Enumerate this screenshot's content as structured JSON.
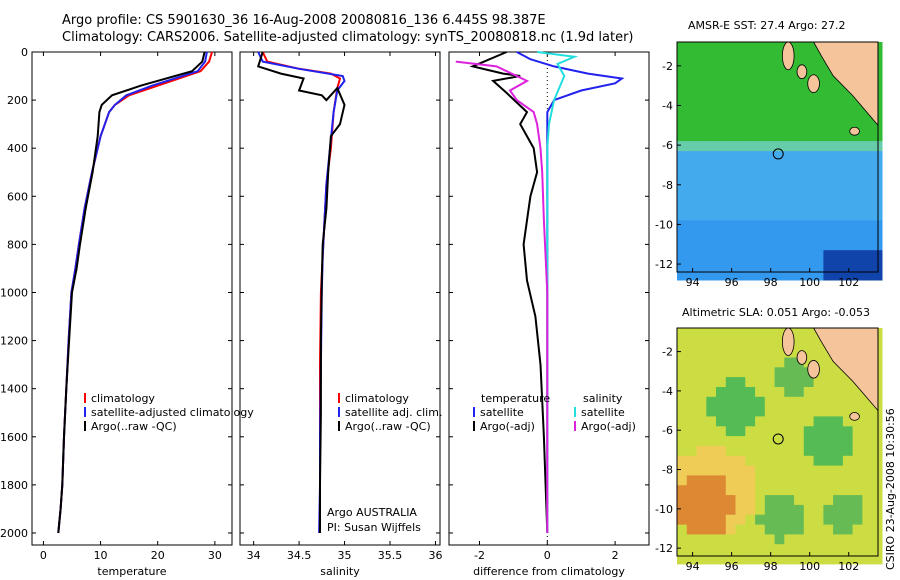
{
  "header": {
    "line1": "Argo profile: CS 5901630_36 16-Aug-2008 20080816_136 6.445S 98.387E",
    "line2": "Climatology: CARS2006. Satellite-adjusted climatology: synTS_20080818.nc (1.9d later)"
  },
  "footer_vertical": "CSIRO 23-Aug-2008 10:30:56",
  "colors": {
    "red": "#ff0000",
    "blue": "#2222ee",
    "black": "#000000",
    "cyan": "#22dddd",
    "magenta": "#dd22dd",
    "land": "#f5c49a"
  },
  "chart_data": [
    {
      "type": "line",
      "name": "temperature panel",
      "xlabel": "temperature",
      "ylabel": "",
      "xlim": [
        -2,
        33
      ],
      "ylim": [
        2050,
        0
      ],
      "xticks": [
        0,
        10,
        20,
        30
      ],
      "yticks": [
        0,
        200,
        400,
        600,
        800,
        1000,
        1200,
        1400,
        1600,
        1800,
        2000
      ],
      "legend": [
        "climatology",
        "satellite-adjusted climatology",
        "Argo(..raw -QC)"
      ],
      "series": [
        {
          "name": "climatology",
          "color": "red",
          "x": [
            29.5,
            29.0,
            27.5,
            20.0,
            15.0,
            12.5,
            11.5,
            10.0,
            8.5,
            7.2,
            6.2,
            5.6,
            4.9,
            4.4,
            4.0,
            3.6,
            3.3,
            3.0,
            2.6
          ],
          "y": [
            0,
            40,
            80,
            140,
            180,
            220,
            250,
            350,
            500,
            650,
            800,
            900,
            1000,
            1200,
            1400,
            1600,
            1800,
            1900,
            2000
          ]
        },
        {
          "name": "satellite-adjusted climatology",
          "color": "blue",
          "x": [
            28.6,
            28.3,
            27.0,
            19.0,
            14.5,
            12.5,
            11.5,
            10.0,
            8.5,
            7.2,
            6.2,
            5.6,
            4.9,
            4.4,
            4.0,
            3.6,
            3.3,
            3.0,
            2.6
          ],
          "y": [
            0,
            40,
            80,
            140,
            180,
            220,
            250,
            350,
            500,
            650,
            800,
            900,
            1000,
            1200,
            1400,
            1600,
            1800,
            1900,
            2000
          ]
        },
        {
          "name": "Argo(..raw -QC)",
          "color": "black",
          "x": [
            28.2,
            27.8,
            26.0,
            17.0,
            12.0,
            10.2,
            9.8,
            9.5,
            8.6,
            7.4,
            6.4,
            5.8,
            5.0,
            4.5,
            4.0,
            3.6,
            3.3,
            3.0,
            2.6
          ],
          "y": [
            0,
            40,
            80,
            140,
            180,
            220,
            250,
            350,
            500,
            650,
            800,
            900,
            1000,
            1200,
            1400,
            1600,
            1800,
            1900,
            2000
          ]
        }
      ]
    },
    {
      "type": "line",
      "name": "salinity panel",
      "xlabel": "salinity",
      "xlim": [
        33.85,
        36.05
      ],
      "ylim": [
        2050,
        0
      ],
      "xticks": [
        34,
        34.5,
        35,
        35.5,
        36
      ],
      "legend": [
        "climatology",
        "satellite adj. clim.",
        "Argo(..raw -QC)"
      ],
      "annotation": [
        "Argo AUSTRALIA",
        "PI: Susan Wijffels"
      ],
      "series": [
        {
          "name": "climatology",
          "color": "red",
          "x": [
            34.1,
            34.15,
            34.5,
            34.85,
            34.95,
            34.92,
            34.88,
            34.85,
            34.8,
            34.78,
            34.76,
            34.74,
            34.73,
            34.73,
            34.73,
            34.73
          ],
          "y": [
            0,
            40,
            70,
            90,
            110,
            150,
            250,
            400,
            550,
            700,
            850,
            1000,
            1300,
            1600,
            1800,
            2000
          ]
        },
        {
          "name": "satellite adj. clim.",
          "color": "blue",
          "x": [
            34.05,
            34.1,
            34.5,
            34.98,
            35.0,
            34.92,
            34.88,
            34.84,
            34.8,
            34.78,
            34.76,
            34.75,
            34.74,
            34.73,
            34.73,
            34.72
          ],
          "y": [
            0,
            40,
            70,
            100,
            120,
            160,
            250,
            400,
            550,
            700,
            850,
            1000,
            1300,
            1600,
            1800,
            2000
          ]
        },
        {
          "name": "Argo(..raw -QC)",
          "color": "black",
          "x": [
            34.1,
            34.05,
            34.3,
            34.55,
            34.5,
            34.75,
            34.8,
            34.92,
            35.0,
            34.95,
            34.85,
            34.82,
            34.8,
            34.76,
            34.75,
            34.74,
            34.74,
            34.73,
            34.73
          ],
          "y": [
            0,
            60,
            90,
            110,
            160,
            180,
            200,
            150,
            220,
            300,
            350,
            500,
            650,
            800,
            950,
            1200,
            1500,
            1800,
            2000
          ]
        }
      ]
    },
    {
      "type": "line",
      "name": "difference panel",
      "xlabel": "difference from climatology",
      "xlim": [
        -2.9,
        3.0
      ],
      "ylim": [
        2050,
        0
      ],
      "xticks": [
        -2,
        0,
        2
      ],
      "legend_left": {
        "title": "temperature",
        "items": [
          "satellite",
          "Argo(-adj)"
        ]
      },
      "legend_right": {
        "title": "salinity",
        "items": [
          "satellite",
          "Argo(-adj)"
        ]
      },
      "series": [
        {
          "name": "temperature satellite",
          "color": "blue",
          "x": [
            -0.9,
            -0.5,
            0.2,
            1.2,
            2.2,
            2.0,
            1.0,
            0.2,
            0.0,
            0.0,
            0.0,
            0.0,
            0.0
          ],
          "y": [
            0,
            30,
            60,
            90,
            110,
            130,
            160,
            200,
            250,
            400,
            800,
            1400,
            2000
          ]
        },
        {
          "name": "temperature Argo(-adj)",
          "color": "black",
          "x": [
            -1.2,
            -2.2,
            -1.3,
            -0.8,
            -1.6,
            -1.2,
            -0.6,
            -0.8,
            -0.4,
            -0.3,
            -0.5,
            -0.6,
            -0.7,
            -0.6,
            -0.35,
            -0.2,
            -0.1,
            0.0
          ],
          "y": [
            0,
            60,
            90,
            100,
            120,
            170,
            250,
            300,
            400,
            500,
            600,
            700,
            800,
            950,
            1100,
            1300,
            1600,
            2000
          ]
        },
        {
          "name": "salinity satellite",
          "color": "cyan",
          "x": [
            -0.3,
            0.8,
            0.3,
            0.5,
            0.2,
            0.05,
            0.0,
            0.0,
            0.0,
            0.0
          ],
          "y": [
            0,
            20,
            50,
            100,
            200,
            300,
            400,
            800,
            1400,
            2000
          ]
        },
        {
          "name": "salinity Argo(-adj)",
          "color": "magenta",
          "x": [
            -2.7,
            -1.5,
            -1.2,
            -0.6,
            -1.1,
            -0.9,
            -0.4,
            -0.3,
            -0.2,
            -0.15,
            -0.1,
            0.0,
            0.0
          ],
          "y": [
            40,
            60,
            80,
            120,
            160,
            200,
            250,
            300,
            400,
            500,
            700,
            1000,
            2000
          ]
        }
      ]
    },
    {
      "type": "heatmap",
      "name": "sst map",
      "title": "AMSR-E SST: 27.4  Argo: 27.2",
      "xlim": [
        93.2,
        103.5
      ],
      "ylim": [
        -12.4,
        -0.8
      ],
      "xticks": [
        94,
        96,
        98,
        100,
        102
      ],
      "yticks": [
        -2,
        -4,
        -6,
        -8,
        -10,
        -12
      ],
      "marker": {
        "lon": 98.387,
        "lat": -6.445
      }
    },
    {
      "type": "heatmap",
      "name": "sla map",
      "title": "Altimetric SLA: 0.051  Argo: -0.053",
      "xlim": [
        93.2,
        103.5
      ],
      "ylim": [
        -12.4,
        -0.8
      ],
      "xticks": [
        94,
        96,
        98,
        100,
        102
      ],
      "yticks": [
        -2,
        -4,
        -6,
        -8,
        -10,
        -12
      ],
      "marker": {
        "lon": 98.387,
        "lat": -6.445
      }
    }
  ]
}
